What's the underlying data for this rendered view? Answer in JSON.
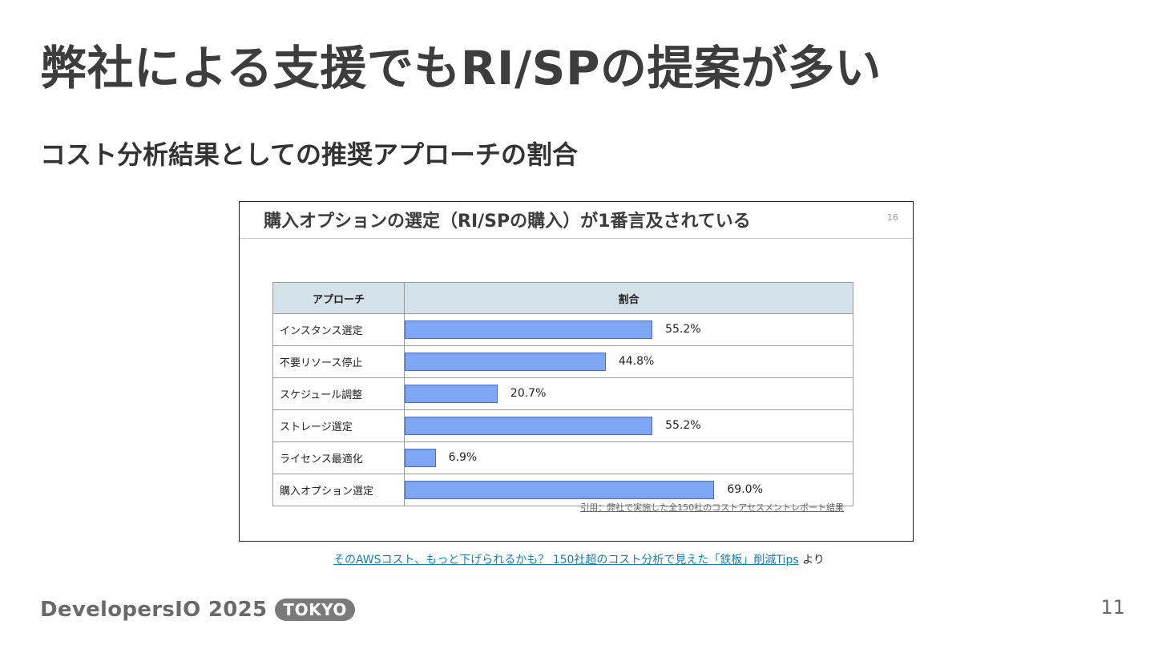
{
  "slide": {
    "title": "弊社による支援でもRI/SPの提案が多い",
    "subtitle": "コスト分析結果としての推奨アプローチの割合",
    "page_number": "11"
  },
  "figure": {
    "title": "購入オプションの選定（RI/SPの購入）が1番言及されている",
    "page": "16",
    "citation": "引用：弊社で実施した全150社のコストアセスメントレポート結果"
  },
  "chart_data": {
    "type": "bar",
    "orientation": "horizontal",
    "columns": [
      "アプローチ",
      "割合"
    ],
    "categories": [
      "インスタンス選定",
      "不要リソース停止",
      "スケジュール調整",
      "ストレージ選定",
      "ライセンス最適化",
      "購入オプション選定"
    ],
    "values": [
      55.2,
      44.8,
      20.7,
      55.2,
      6.9,
      69.0
    ],
    "value_labels": [
      "55.2%",
      "44.8%",
      "20.7%",
      "55.2%",
      "6.9%",
      "69.0%"
    ],
    "xlim": [
      0,
      100
    ],
    "bar_color": "#7fa7f4",
    "header_color": "#d3e1e8"
  },
  "source": {
    "link_text": "そのAWSコスト、もっと下げられるかも？ 150社超のコスト分析で見えた「鉄板」削減Tips",
    "suffix": "より"
  },
  "footer": {
    "brand": "DevelopersIO 2025",
    "badge": "TOKYO"
  }
}
